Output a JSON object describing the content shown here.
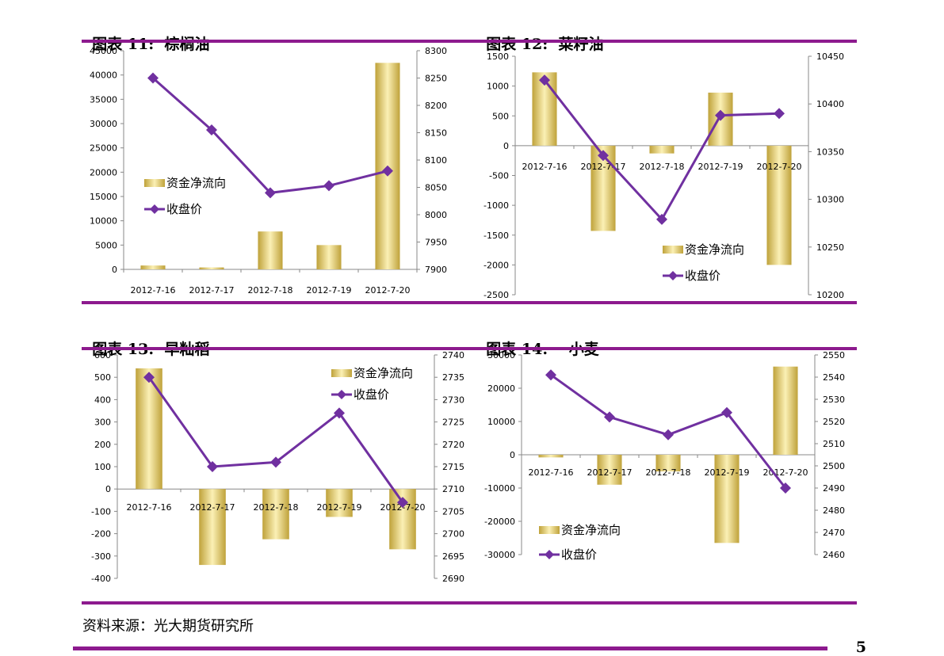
{
  "sections": [
    {
      "label": "图表 11:",
      "name": "棕榈油"
    },
    {
      "label": "图表 12:",
      "name": "菜籽油"
    },
    {
      "label": "图表 13:",
      "name": "早籼稻"
    },
    {
      "label": "图表 14:",
      "name": "小麦"
    }
  ],
  "source": "资料来源：光大期货研究所",
  "page_number": "5",
  "colors": {
    "accent": "#8d1a8e",
    "line": "#7030a0",
    "bar_dark": "#bfa23a",
    "bar_light": "#fbf0b5"
  },
  "chart_data": [
    {
      "type": "bar+line",
      "categories": [
        "2012-7-16",
        "2012-7-17",
        "2012-7-18",
        "2012-7-19",
        "2012-7-20"
      ],
      "series": [
        {
          "name": "资金净流向",
          "type": "bar",
          "axis": "left",
          "values": [
            800,
            400,
            7800,
            5000,
            42500
          ]
        },
        {
          "name": "收盘价",
          "type": "line",
          "axis": "right",
          "values": [
            8250,
            8155,
            8040,
            8053,
            8080
          ]
        }
      ],
      "y_left": {
        "min": 0,
        "max": 45000,
        "ticks": [
          "0",
          "5000",
          "10000",
          "15000",
          "20000",
          "25000",
          "30000",
          "35000",
          "40000",
          "45000"
        ]
      },
      "y_right": {
        "min": 7900,
        "max": 8300,
        "ticks": [
          "7900",
          "7950",
          "8000",
          "8050",
          "8100",
          "8150",
          "8200",
          "8250",
          "8300"
        ]
      },
      "legend": "left-middle"
    },
    {
      "type": "bar+line",
      "categories": [
        "2012-7-16",
        "2012-7-17",
        "2012-7-18",
        "2012-7-19",
        "2012-7-20"
      ],
      "series": [
        {
          "name": "资金净流向",
          "type": "bar",
          "axis": "left",
          "values": [
            1230,
            -1430,
            -130,
            890,
            -2000
          ]
        },
        {
          "name": "收盘价",
          "type": "line",
          "axis": "right",
          "values": [
            10425,
            10346,
            10279,
            10388,
            10390
          ]
        }
      ],
      "y_left": {
        "min": -2500,
        "max": 1500,
        "ticks": [
          "-2500",
          "-2000",
          "-1500",
          "-1000",
          "-500",
          "0",
          "500",
          "1000",
          "1500"
        ]
      },
      "y_right": {
        "min": 10200,
        "max": 10450,
        "ticks": [
          "10200",
          "10250",
          "10300",
          "10350",
          "10400",
          "10450"
        ]
      },
      "legend": "bottom-right"
    },
    {
      "type": "bar+line",
      "categories": [
        "2012-7-16",
        "2012-7-17",
        "2012-7-18",
        "2012-7-19",
        "2012-7-20"
      ],
      "series": [
        {
          "name": "资金净流向",
          "type": "bar",
          "axis": "left",
          "values": [
            540,
            -340,
            -225,
            -125,
            -270
          ]
        },
        {
          "name": "收盘价",
          "type": "line",
          "axis": "right",
          "values": [
            2735,
            2715,
            2716,
            2727,
            2707
          ]
        }
      ],
      "y_left": {
        "min": -400,
        "max": 600,
        "ticks": [
          "-400",
          "-300",
          "-200",
          "-100",
          "0",
          "100",
          "200",
          "300",
          "400",
          "500",
          "600"
        ]
      },
      "y_right": {
        "min": 2690,
        "max": 2740,
        "ticks": [
          "2690",
          "2695",
          "2700",
          "2705",
          "2710",
          "2715",
          "2720",
          "2725",
          "2730",
          "2735",
          "2740"
        ]
      },
      "legend": "top-right"
    },
    {
      "type": "bar+line",
      "categories": [
        "2012-7-16",
        "2012-7-17",
        "2012-7-18",
        "2012-7-19",
        "2012-7-20"
      ],
      "series": [
        {
          "name": "资金净流向",
          "type": "bar",
          "axis": "left",
          "values": [
            -800,
            -9000,
            -5000,
            -26500,
            26500
          ]
        },
        {
          "name": "收盘价",
          "type": "line",
          "axis": "right",
          "values": [
            2541,
            2522,
            2514,
            2524,
            2490
          ]
        }
      ],
      "y_left": {
        "min": -30000,
        "max": 30000,
        "ticks": [
          "-30000",
          "-20000",
          "-10000",
          "0",
          "10000",
          "20000",
          "30000"
        ]
      },
      "y_right": {
        "min": 2460,
        "max": 2550,
        "ticks": [
          "2460",
          "2470",
          "2480",
          "2490",
          "2500",
          "2510",
          "2520",
          "2530",
          "2540",
          "2550"
        ]
      },
      "legend": "bottom-left"
    }
  ]
}
